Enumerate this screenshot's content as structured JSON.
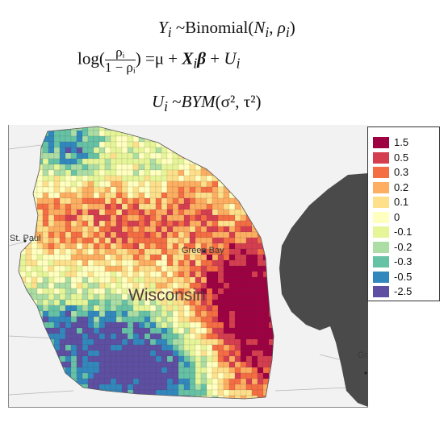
{
  "equations": {
    "line1": {
      "lhs": "Y",
      "lhs_sub": "i",
      "rel": "~Binomial(",
      "a": "N",
      "a_sub": "i",
      "sep": ", ",
      "b": "ρ",
      "b_sub": "i",
      "close": ")"
    },
    "line2": {
      "log": "log(",
      "num": "ρᵢ",
      "den": "1 − ρᵢ",
      "close": ")",
      "rhs_eq": "=μ + ",
      "x": "X",
      "x_sub": "i",
      "beta": "β",
      "plus": " + ",
      "u": "U",
      "u_sub": "i"
    },
    "line3": {
      "lhs": "U",
      "lhs_sub": "i",
      "rel": "~",
      "bym": "BYM",
      "args": "(σ², τ²)"
    }
  },
  "map": {
    "labels": {
      "state": "Wisconsin",
      "city_west": "St. Paul",
      "city_east": "Green Bay",
      "city_edge": "Gr"
    },
    "lake_color": "#4a4a4a",
    "land_color": "#f2f2f2"
  },
  "legend": {
    "items": [
      {
        "label": "1.5",
        "color": "#9e0142"
      },
      {
        "label": "0.5",
        "color": "#d53e4f"
      },
      {
        "label": "0.3",
        "color": "#f46d43"
      },
      {
        "label": "0.2",
        "color": "#fdae61"
      },
      {
        "label": "0.1",
        "color": "#fee08b"
      },
      {
        "label": "0",
        "color": "#ffffbf"
      },
      {
        "label": "-0.1",
        "color": "#e6f598"
      },
      {
        "label": "-0.2",
        "color": "#abdda4"
      },
      {
        "label": "-0.3",
        "color": "#66c2a5"
      },
      {
        "label": "-0.5",
        "color": "#3288bd"
      },
      {
        "label": "-2.5",
        "color": "#5e4fa2"
      }
    ]
  }
}
